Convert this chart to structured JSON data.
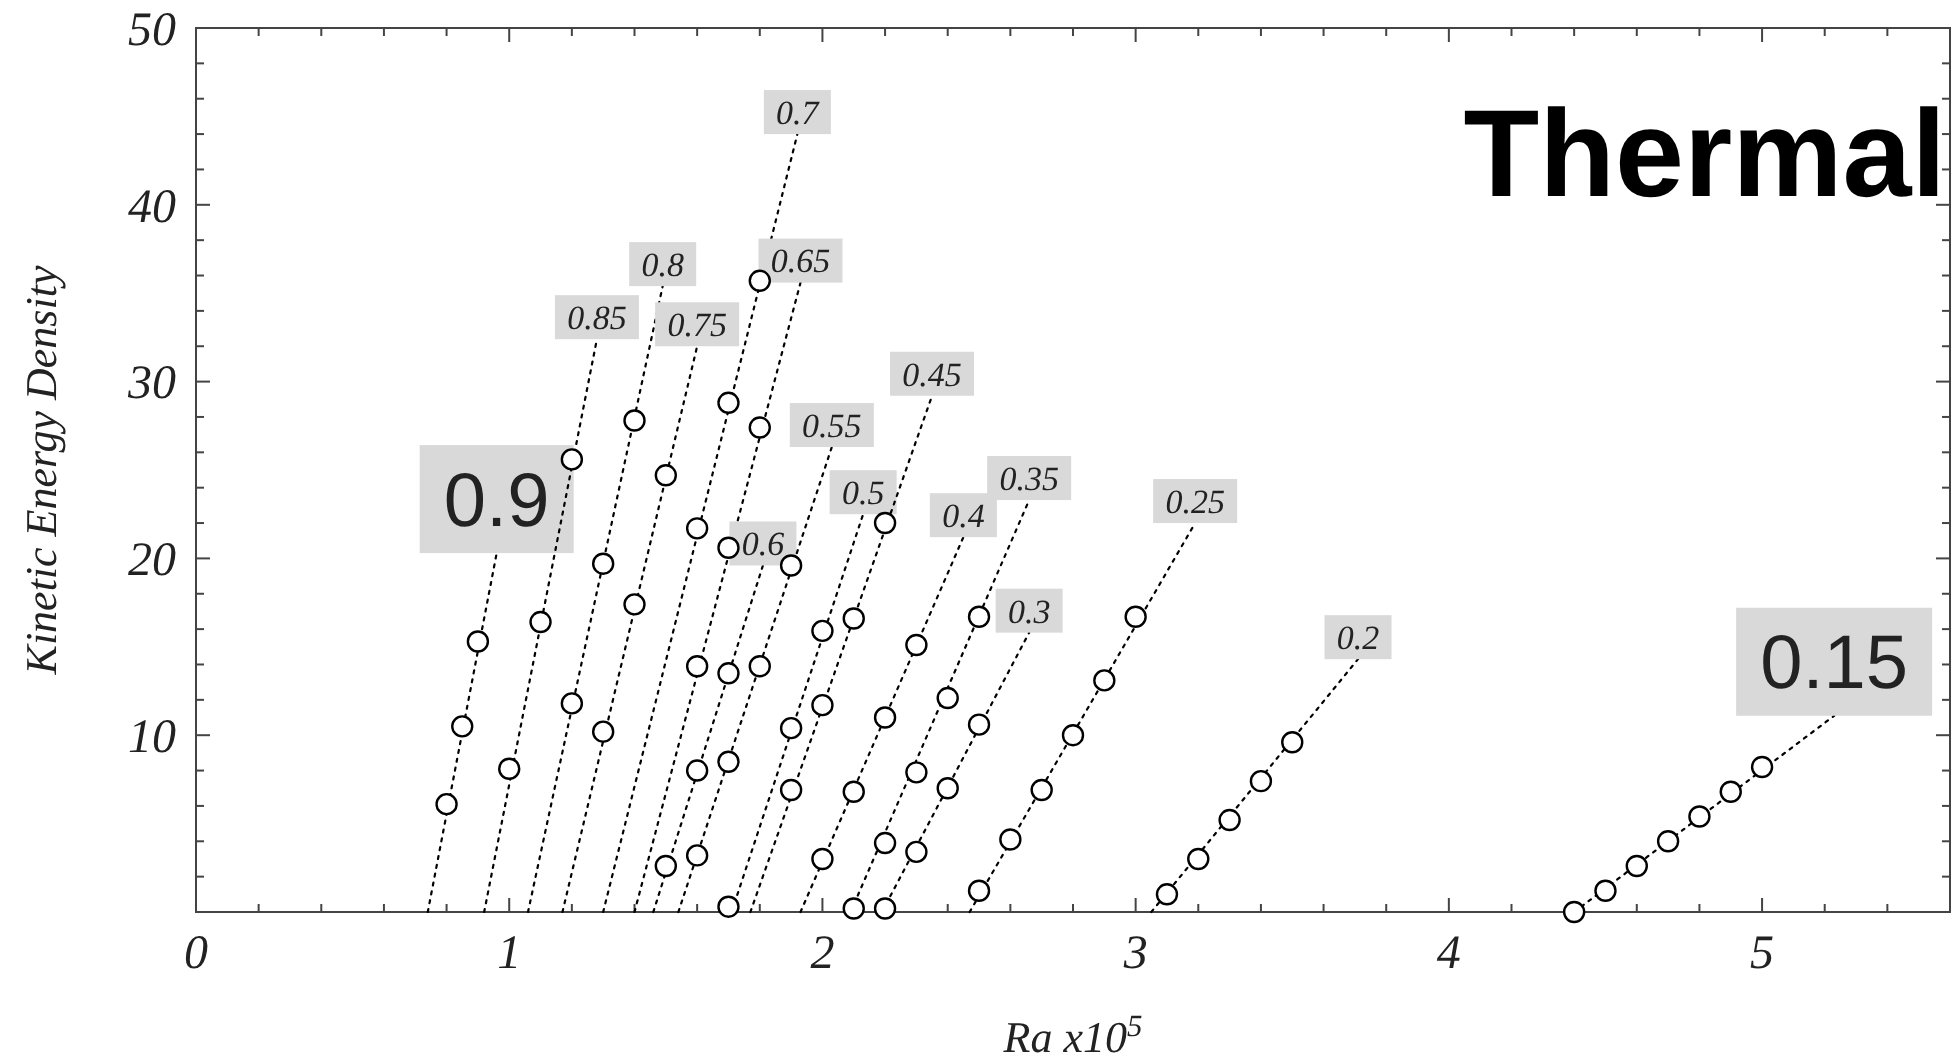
{
  "chart_data": {
    "type": "scatter",
    "title": "Thermal",
    "xlabel": "Ra x10$^{5}$",
    "ylabel": "Kinetic Energy Density",
    "xlim": [
      0,
      5.6
    ],
    "ylim": [
      0,
      50
    ],
    "xticks": [
      0,
      {
        "value": 0.2,
        "label": null
      },
      {
        "value": 0.4,
        "label": null
      },
      {
        "value": 0.6,
        "label": null
      },
      {
        "value": 0.8,
        "label": null
      },
      1,
      {
        "value": 1.2,
        "label": null
      },
      {
        "value": 1.4,
        "label": null
      },
      {
        "value": 1.6,
        "label": null
      },
      {
        "value": 1.8,
        "label": null
      },
      2,
      {
        "value": 2.2,
        "label": null
      },
      {
        "value": 2.4,
        "label": null
      },
      {
        "value": 2.6,
        "label": null
      },
      {
        "value": 2.8,
        "label": null
      },
      3,
      {
        "value": 3.2,
        "label": null
      },
      {
        "value": 3.4,
        "label": null
      },
      {
        "value": 3.6,
        "label": null
      },
      {
        "value": 3.8,
        "label": null
      },
      4,
      {
        "value": 4.2,
        "label": null
      },
      {
        "value": 4.4,
        "label": null
      },
      {
        "value": 4.6,
        "label": null
      },
      {
        "value": 4.8,
        "label": null
      },
      5,
      {
        "value": 5.2,
        "label": null
      },
      {
        "value": 5.4,
        "label": null
      }
    ],
    "yticks": [
      {
        "value": 2,
        "label": null
      },
      {
        "value": 4,
        "label": null
      },
      {
        "value": 6,
        "label": null
      },
      {
        "value": 8,
        "label": null
      },
      10,
      {
        "value": 12,
        "label": null
      },
      {
        "value": 14,
        "label": null
      },
      {
        "value": 16,
        "label": null
      },
      {
        "value": 18,
        "label": null
      },
      20,
      {
        "value": 22,
        "label": null
      },
      {
        "value": 24,
        "label": null
      },
      {
        "value": 26,
        "label": null
      },
      {
        "value": 28,
        "label": null
      },
      30,
      {
        "value": 32,
        "label": null
      },
      {
        "value": 34,
        "label": null
      },
      {
        "value": 36,
        "label": null
      },
      {
        "value": 38,
        "label": null
      },
      40,
      {
        "value": 42,
        "label": null
      },
      {
        "value": 44,
        "label": null
      },
      {
        "value": 46,
        "label": null
      },
      {
        "value": 48,
        "label": null
      },
      50
    ],
    "grid": false,
    "marker": "circle",
    "line_style": "dotted",
    "series": [
      {
        "type": "line",
        "marker": "none",
        "name": "0.9",
        "color": "#000000",
        "x": [
          0.74,
          0.96
        ],
        "values": [
          0,
          20.3
        ]
      },
      {
        "color": "#000000",
        "x": [
          0.8,
          0.85,
          0.9
        ],
        "values": [
          6.1,
          10.5,
          15.3
        ]
      },
      {
        "type": "line",
        "marker": "none",
        "name": "0.85",
        "color": "#000000",
        "x": [
          0.92,
          1.28
        ],
        "values": [
          0,
          32.4
        ]
      },
      {
        "color": "#000000",
        "x": [
          1.0,
          1.1,
          1.2
        ],
        "values": [
          8.1,
          16.4,
          25.6
        ]
      },
      {
        "type": "line",
        "marker": "none",
        "name": "0.8",
        "color": "#000000",
        "x": [
          1.06,
          1.49
        ],
        "values": [
          0,
          35.4
        ]
      },
      {
        "color": "#000000",
        "x": [
          1.2,
          1.3,
          1.4
        ],
        "values": [
          11.8,
          19.7,
          27.8
        ]
      },
      {
        "type": "line",
        "marker": "none",
        "name": "0.75",
        "color": "#000000",
        "x": [
          1.17,
          1.6
        ],
        "values": [
          0,
          32.0
        ]
      },
      {
        "color": "#000000",
        "x": [
          1.3,
          1.4,
          1.5
        ],
        "values": [
          10.2,
          17.4,
          24.7
        ]
      },
      {
        "type": "line",
        "marker": "none",
        "name": "0.7",
        "color": "#000000",
        "x": [
          1.3,
          1.92
        ],
        "values": [
          0,
          44.0
        ]
      },
      {
        "color": "#000000",
        "x": [
          1.6,
          1.7,
          1.8
        ],
        "values": [
          21.7,
          28.8,
          35.7
        ]
      },
      {
        "type": "line",
        "marker": "none",
        "name": "0.65",
        "color": "#000000",
        "x": [
          1.4,
          1.93
        ],
        "values": [
          0,
          35.6
        ]
      },
      {
        "color": "#000000",
        "x": [
          1.6,
          1.7,
          1.8
        ],
        "values": [
          13.9,
          20.6,
          27.4
        ]
      },
      {
        "type": "line",
        "marker": "none",
        "name": "0.6",
        "color": "#000000",
        "x": [
          1.46,
          1.81
        ],
        "values": [
          0,
          19.6
        ]
      },
      {
        "color": "#000000",
        "x": [
          1.5,
          1.6,
          1.7
        ],
        "values": [
          2.6,
          8.0,
          13.5
        ]
      },
      {
        "type": "line",
        "marker": "none",
        "name": "0.55",
        "color": "#000000",
        "x": [
          1.54,
          2.03
        ],
        "values": [
          0,
          26.3
        ]
      },
      {
        "color": "#000000",
        "x": [
          1.6,
          1.7,
          1.8,
          1.9
        ],
        "values": [
          3.2,
          8.5,
          13.9,
          19.6
        ]
      },
      {
        "type": "line",
        "marker": "none",
        "name": "0.5",
        "color": "#000000",
        "x": [
          1.71,
          2.13
        ],
        "values": [
          0,
          22.5
        ]
      },
      {
        "color": "#000000",
        "x": [
          1.7,
          1.9,
          2.0
        ],
        "values": [
          0.3,
          10.4,
          15.9
        ]
      },
      {
        "type": "line",
        "marker": "none",
        "name": "0.45",
        "color": "#000000",
        "x": [
          1.77,
          2.35
        ],
        "values": [
          0,
          29.2
        ]
      },
      {
        "color": "#000000",
        "x": [
          1.9,
          2.0,
          2.1,
          2.2
        ],
        "values": [
          6.9,
          11.7,
          16.6,
          22.0
        ]
      },
      {
        "type": "line",
        "marker": "none",
        "name": "0.4",
        "color": "#000000",
        "x": [
          1.93,
          2.45
        ],
        "values": [
          0,
          21.2
        ]
      },
      {
        "color": "#000000",
        "x": [
          2.0,
          2.1,
          2.2,
          2.3
        ],
        "values": [
          3.0,
          6.8,
          11.0,
          15.1
        ]
      },
      {
        "type": "line",
        "marker": "none",
        "name": "0.35",
        "color": "#000000",
        "x": [
          2.09,
          2.66
        ],
        "values": [
          0,
          23.3
        ]
      },
      {
        "color": "#000000",
        "x": [
          2.1,
          2.2,
          2.3,
          2.4,
          2.5
        ],
        "values": [
          0.2,
          3.9,
          7.9,
          12.1,
          16.7
        ]
      },
      {
        "type": "line",
        "marker": "none",
        "name": "0.3",
        "color": "#000000",
        "x": [
          2.19,
          2.66
        ],
        "values": [
          0,
          15.8
        ]
      },
      {
        "color": "#000000",
        "x": [
          2.2,
          2.3,
          2.4,
          2.5
        ],
        "values": [
          0.2,
          3.4,
          7.0,
          10.6
        ]
      },
      {
        "type": "line",
        "marker": "none",
        "name": "0.25",
        "color": "#000000",
        "x": [
          2.47,
          3.19
        ],
        "values": [
          0,
          22.0
        ]
      },
      {
        "color": "#000000",
        "x": [
          2.5,
          2.6,
          2.7,
          2.8,
          2.9,
          3.0
        ],
        "values": [
          1.2,
          4.1,
          6.9,
          10.0,
          13.1,
          16.7
        ]
      },
      {
        "type": "line",
        "marker": "none",
        "name": "0.2",
        "color": "#000000",
        "x": [
          3.05,
          3.71
        ],
        "values": [
          0,
          14.3
        ]
      },
      {
        "color": "#000000",
        "x": [
          3.1,
          3.2,
          3.3,
          3.4,
          3.5
        ],
        "values": [
          1.0,
          3.0,
          5.2,
          7.4,
          9.6
        ]
      },
      {
        "type": "line",
        "marker": "none",
        "name": "0.15",
        "color": "#000000",
        "x": [
          4.4,
          5.23
        ],
        "values": [
          0,
          11.1
        ]
      },
      {
        "color": "#000000",
        "x": [
          4.4,
          4.5,
          4.6,
          4.7,
          4.8,
          4.9,
          5.0
        ],
        "values": [
          0.0,
          1.2,
          2.6,
          4.0,
          5.4,
          6.8,
          8.2
        ]
      }
    ]
  }
}
